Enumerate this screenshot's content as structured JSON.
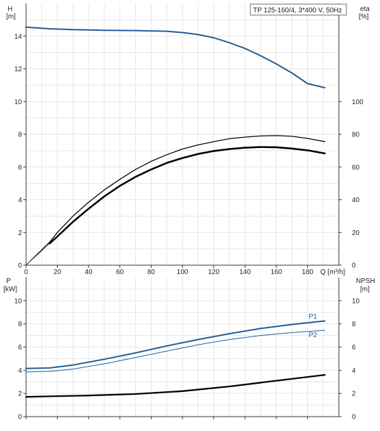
{
  "colors": {
    "pump_blue": "#1f5b97",
    "efficiency_black": "#000000",
    "grid": "#e6e6e6",
    "axis": "#333333"
  },
  "chart_data": [
    {
      "type": "line",
      "title": "TP 125-160/4, 3*400 V, 50Hz",
      "xlabel": "Q [m³/h]",
      "ylabel": [
        "H",
        "[m]"
      ],
      "ylabel_right": [
        "eta",
        "[%]"
      ],
      "xlim": [
        0,
        200
      ],
      "ylim": [
        0,
        16
      ],
      "ylim_right": [
        0,
        160
      ],
      "x_ticks": [
        "0",
        "20",
        "40",
        "60",
        "80",
        "100",
        "120",
        "140",
        "160",
        "180"
      ],
      "y_ticks": [
        "0",
        "2",
        "4",
        "6",
        "8",
        "10",
        "12",
        "14"
      ],
      "y_ticks_right": [
        "0",
        "20",
        "40",
        "60",
        "80",
        "100"
      ],
      "grid": true,
      "series": [
        {
          "axis": "left",
          "color": "#1f5b97",
          "width": 2,
          "x": [
            0,
            15,
            30,
            50,
            70,
            90,
            100,
            110,
            120,
            130,
            140,
            150,
            160,
            170,
            180,
            191
          ],
          "y": [
            14.55,
            14.45,
            14.4,
            14.36,
            14.34,
            14.3,
            14.22,
            14.1,
            13.9,
            13.6,
            13.25,
            12.8,
            12.3,
            11.75,
            11.1,
            10.85
          ]
        },
        {
          "axis": "right",
          "color": "#000000",
          "width": 1.3,
          "x": [
            0,
            15,
            20,
            30,
            40,
            50,
            60,
            70,
            80,
            90,
            100,
            110,
            120,
            130,
            140,
            150,
            160,
            170,
            180,
            191
          ],
          "y": [
            0,
            14,
            20,
            30,
            38.5,
            46,
            52.5,
            58.5,
            63.5,
            67.5,
            71,
            73.5,
            75.5,
            77.3,
            78.3,
            79,
            79.2,
            78.8,
            77.5,
            75.5
          ]
        },
        {
          "axis": "right",
          "color": "#000000",
          "width": 2.6,
          "x": [
            15,
            20,
            30,
            40,
            50,
            60,
            70,
            80,
            90,
            100,
            110,
            120,
            130,
            140,
            150,
            160,
            170,
            180,
            191
          ],
          "y": [
            13.2,
            17.5,
            26.5,
            34.5,
            42,
            48.5,
            54,
            58.5,
            62.5,
            65.5,
            68,
            69.8,
            71,
            71.8,
            72.2,
            72.1,
            71.3,
            70.2,
            68.3
          ]
        },
        {
          "axis": "left",
          "color": "#888888",
          "width": 0.8,
          "x": [
            0,
            15
          ],
          "y": [
            0,
            1.3
          ]
        }
      ]
    },
    {
      "type": "line",
      "xlabel": "",
      "ylabel": [
        "P",
        "[kW]"
      ],
      "ylabel_right": [
        "NPSH",
        "[m]"
      ],
      "xlim": [
        0,
        200
      ],
      "ylim": [
        0,
        12
      ],
      "ylim_right": [
        0,
        12
      ],
      "y_ticks": [
        "0",
        "2",
        "4",
        "6",
        "8",
        "10"
      ],
      "y_ticks_right": [
        "0",
        "2",
        "4",
        "6",
        "8",
        "10"
      ],
      "grid": true,
      "series": [
        {
          "name": "P1",
          "axis": "left",
          "color": "#1f5b97",
          "width": 2,
          "x": [
            0,
            15,
            30,
            50,
            70,
            90,
            110,
            130,
            150,
            170,
            191
          ],
          "y": [
            4.15,
            4.2,
            4.45,
            4.95,
            5.5,
            6.1,
            6.65,
            7.15,
            7.6,
            7.95,
            8.25
          ]
        },
        {
          "name": "P2",
          "axis": "left",
          "color": "#1f5b97",
          "width": 1,
          "x": [
            0,
            15,
            30,
            50,
            70,
            90,
            110,
            130,
            150,
            170,
            191
          ],
          "y": [
            3.85,
            3.9,
            4.1,
            4.55,
            5.1,
            5.65,
            6.2,
            6.65,
            7.0,
            7.25,
            7.45
          ]
        },
        {
          "axis": "right",
          "color": "#000000",
          "width": 2.3,
          "x": [
            0,
            15,
            40,
            70,
            100,
            130,
            160,
            191
          ],
          "y": [
            1.7,
            1.75,
            1.82,
            1.95,
            2.2,
            2.6,
            3.1,
            3.6
          ]
        }
      ]
    }
  ]
}
